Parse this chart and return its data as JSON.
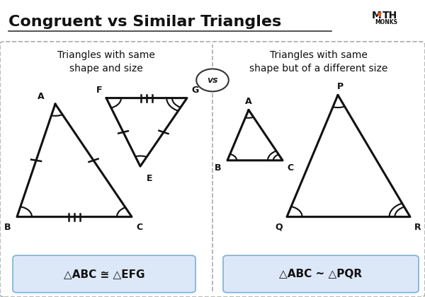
{
  "title": "Congruent vs Similar Triangles",
  "bg_color": "#ffffff",
  "box_bg": "#ffffff",
  "box_border": "#aaaaaa",
  "left_title": "Triangles with same\nshape and size",
  "right_title": "Triangles with same\nshape but of a different size",
  "vs_text": "vs",
  "left_formula": "△ABC ≅ △EFG",
  "right_formula": "△ABC ~ △PQR",
  "formula_bg": "#dce8f8"
}
